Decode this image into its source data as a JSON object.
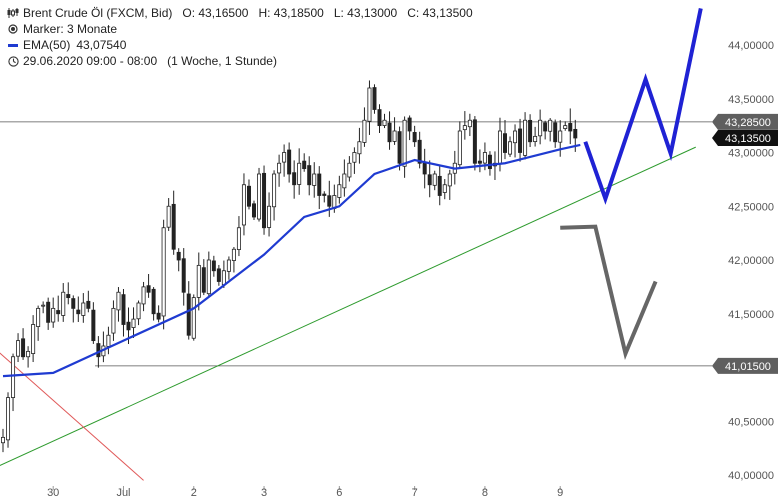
{
  "legend": {
    "instrument": "Brent Crude Öl (FXCM, Bid)",
    "ohlc": {
      "open": "O: 43,16500",
      "high": "H: 43,18500",
      "low": "L: 43,13000",
      "close": "C: 43,13500"
    },
    "marker": "Marker: 3 Monate",
    "ema_label": "EMA(50)",
    "ema_value": "43,07540",
    "period": "29.06.2020 09:00 - 08:00",
    "interval": "(1 Woche, 1 Stunde)",
    "icons": [
      "candle-chart-icon",
      "marker-target-icon",
      "ema-line-icon",
      "clock-icon"
    ]
  },
  "chart_data": {
    "type": "candlestick",
    "ylim": [
      40.0,
      44.2
    ],
    "y_ticks": [
      "40,00000",
      "40,50000",
      "41,00000",
      "41,50000",
      "42,00000",
      "42,50000",
      "43,00000",
      "43,50000",
      "44,00000"
    ],
    "y_tick_values": [
      40.0,
      40.5,
      41.0,
      41.5,
      42.0,
      42.5,
      43.0,
      43.5,
      44.0
    ],
    "x_ticks": [
      "30",
      "Jul",
      "2",
      "3",
      "6",
      "7",
      "8",
      "9"
    ],
    "x_tick_index": [
      10,
      24,
      38,
      52,
      67,
      82,
      96,
      111
    ],
    "close_series": [
      40.35,
      40.72,
      41.1,
      41.25,
      41.1,
      41.15,
      41.4,
      41.55,
      41.58,
      41.42,
      41.55,
      41.5,
      41.7,
      41.65,
      41.55,
      41.5,
      41.6,
      41.55,
      41.25,
      41.1,
      41.2,
      41.3,
      41.55,
      41.7,
      41.4,
      41.35,
      41.45,
      41.6,
      41.75,
      41.7,
      41.5,
      41.45,
      42.3,
      42.5,
      42.1,
      42.0,
      41.7,
      41.3,
      41.65,
      41.95,
      41.7,
      42.0,
      41.9,
      41.8,
      41.9,
      42.0,
      42.1,
      42.3,
      42.7,
      42.5,
      42.4,
      42.8,
      42.3,
      42.5,
      42.8,
      42.9,
      43.0,
      42.8,
      42.7,
      42.9,
      42.85,
      42.7,
      42.8,
      42.6,
      42.6,
      42.5,
      42.6,
      42.7,
      42.8,
      42.9,
      43.0,
      43.1,
      43.3,
      43.6,
      43.4,
      43.25,
      43.3,
      43.1,
      43.2,
      42.9,
      43.3,
      43.2,
      43.1,
      42.9,
      42.8,
      42.7,
      42.8,
      42.6,
      42.7,
      42.8,
      42.9,
      43.2,
      43.25,
      43.3,
      42.9,
      42.9,
      43.0,
      42.85,
      42.9,
      43.2,
      43.0,
      43.1,
      43.2,
      43.0,
      43.3,
      43.1,
      43.15,
      43.3,
      43.2,
      43.3,
      43.1,
      43.2,
      43.25,
      43.2,
      43.135
    ],
    "ema_series": [
      [
        0,
        40.92
      ],
      [
        10,
        40.95
      ],
      [
        24,
        41.25
      ],
      [
        38,
        41.55
      ],
      [
        52,
        42.05
      ],
      [
        60,
        42.4
      ],
      [
        67,
        42.5
      ],
      [
        74,
        42.8
      ],
      [
        82,
        42.93
      ],
      [
        90,
        42.85
      ],
      [
        100,
        42.9
      ],
      [
        111,
        43.03
      ],
      [
        115,
        43.07
      ]
    ],
    "horizontal_lines": [
      {
        "value": 43.285,
        "label": "43,28500",
        "color": "#555555"
      },
      {
        "value": 41.015,
        "label": "41,01500",
        "color": "#555555"
      }
    ],
    "price_tag": {
      "value": 43.135,
      "label": "43,13500"
    },
    "trendlines": [
      {
        "color": "#2e9b2e",
        "points": [
          [
            -1,
            40.08
          ],
          [
            138,
            43.05
          ]
        ]
      },
      {
        "color": "#e05a5a",
        "points": [
          [
            -1,
            41.15
          ],
          [
            28,
            39.95
          ]
        ]
      }
    ],
    "projections": [
      {
        "color": "#1f22d4",
        "width": 4,
        "points": [
          [
            116,
            43.1
          ],
          [
            120,
            42.57
          ],
          [
            128,
            43.68
          ],
          [
            133,
            42.99
          ],
          [
            139,
            44.34
          ]
        ]
      },
      {
        "color": "#666666",
        "width": 4,
        "points": [
          [
            111,
            42.3
          ],
          [
            118,
            42.31
          ],
          [
            124,
            41.13
          ],
          [
            130,
            41.8
          ]
        ]
      }
    ]
  }
}
